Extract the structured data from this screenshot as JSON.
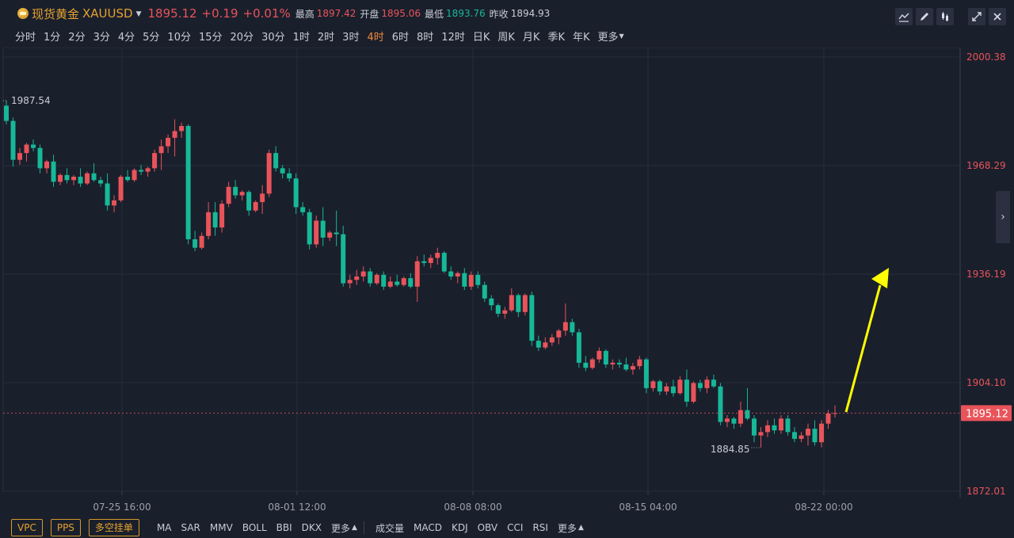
{
  "header": {
    "symbol_name": "现货黄金",
    "symbol_code": "XAUUSD",
    "last_price": "1895.12",
    "change": "+0.19",
    "change_pct": "+0.01%",
    "high_label": "最高",
    "high_value": "1897.42",
    "open_label": "开盘",
    "open_value": "1895.06",
    "low_label": "最低",
    "low_value": "1893.76",
    "prev_close_label": "昨收",
    "prev_close_value": "1894.93",
    "tools": [
      "line-tool-icon",
      "pen-icon",
      "candle-style-icon",
      "expand-icon",
      "close-icon"
    ]
  },
  "timeframes": [
    "分时",
    "1分",
    "2分",
    "3分",
    "4分",
    "5分",
    "10分",
    "15分",
    "20分",
    "30分",
    "1时",
    "2时",
    "3时",
    "4时",
    "6时",
    "8时",
    "12时",
    "日K",
    "周K",
    "月K",
    "季K",
    "年K",
    "更多"
  ],
  "active_timeframe": "4时",
  "footer": {
    "buttons": [
      "VPC",
      "PPS",
      "多空挂单"
    ],
    "main_indicators": [
      "MA",
      "SAR",
      "MMV",
      "BOLL",
      "BBI",
      "DKX"
    ],
    "main_more": "更多",
    "sub_indicators": [
      "成交量",
      "MACD",
      "KDJ",
      "OBV",
      "CCI",
      "RSI"
    ],
    "sub_more": "更多"
  },
  "colors": {
    "up": "#e8545a",
    "down": "#17b897",
    "background": "#1a1f2c",
    "arrow": "#ffff00",
    "accent": "#e4a230"
  },
  "chart_data": {
    "type": "candlestick",
    "ylim": [
      1872.01,
      2000.38
    ],
    "y_ticks": [
      "2000.38",
      "1968.29",
      "1936.19",
      "1904.10",
      "1872.01"
    ],
    "x_ticks": [
      "07-25 16:00",
      "08-01 12:00",
      "08-08 08:00",
      "08-15 04:00",
      "08-22 00:00"
    ],
    "last_price_label": "1895.12",
    "high_marker": "1987.54",
    "low_marker": "1884.85",
    "grid": true,
    "candles": [
      [
        1986.0,
        1987.5,
        1980.5,
        1981.5
      ],
      [
        1981.5,
        1982.5,
        1968.0,
        1970.0
      ],
      [
        1970.0,
        1973.5,
        1968.5,
        1972.0
      ],
      [
        1972.0,
        1975.0,
        1969.5,
        1974.5
      ],
      [
        1974.5,
        1976.0,
        1972.5,
        1973.5
      ],
      [
        1973.5,
        1974.5,
        1966.0,
        1967.5
      ],
      [
        1967.5,
        1970.0,
        1966.0,
        1969.5
      ],
      [
        1969.5,
        1971.5,
        1962.0,
        1963.5
      ],
      [
        1963.5,
        1966.0,
        1962.5,
        1965.5
      ],
      [
        1965.5,
        1967.5,
        1963.0,
        1964.0
      ],
      [
        1964.0,
        1965.5,
        1962.5,
        1965.0
      ],
      [
        1965.0,
        1967.5,
        1962.0,
        1963.0
      ],
      [
        1963.0,
        1966.5,
        1962.5,
        1966.0
      ],
      [
        1966.0,
        1969.0,
        1963.5,
        1964.0
      ],
      [
        1964.0,
        1965.0,
        1962.0,
        1963.0
      ],
      [
        1963.0,
        1966.0,
        1955.0,
        1956.5
      ],
      [
        1956.5,
        1959.5,
        1954.5,
        1958.0
      ],
      [
        1958.0,
        1965.5,
        1957.5,
        1965.0
      ],
      [
        1965.0,
        1967.0,
        1963.5,
        1964.0
      ],
      [
        1964.0,
        1967.5,
        1963.5,
        1967.0
      ],
      [
        1967.0,
        1968.5,
        1965.5,
        1966.5
      ],
      [
        1966.5,
        1968.0,
        1965.0,
        1967.5
      ],
      [
        1967.5,
        1973.0,
        1966.5,
        1972.0
      ],
      [
        1972.0,
        1976.0,
        1967.0,
        1974.0
      ],
      [
        1974.0,
        1977.5,
        1972.0,
        1976.5
      ],
      [
        1976.5,
        1982.0,
        1971.0,
        1978.5
      ],
      [
        1978.5,
        1981.0,
        1976.5,
        1980.0
      ],
      [
        1980.0,
        1980.5,
        1945.0,
        1946.5
      ],
      [
        1946.5,
        1949.0,
        1943.0,
        1944.0
      ],
      [
        1944.0,
        1948.5,
        1943.5,
        1947.5
      ],
      [
        1947.5,
        1957.5,
        1946.5,
        1954.5
      ],
      [
        1954.5,
        1957.5,
        1947.5,
        1950.0
      ],
      [
        1950.0,
        1958.0,
        1948.5,
        1957.0
      ],
      [
        1957.0,
        1963.5,
        1956.0,
        1962.0
      ],
      [
        1962.0,
        1964.0,
        1958.5,
        1959.5
      ],
      [
        1959.5,
        1961.0,
        1958.0,
        1960.5
      ],
      [
        1960.5,
        1961.0,
        1953.5,
        1955.0
      ],
      [
        1955.0,
        1958.0,
        1954.5,
        1957.5
      ],
      [
        1957.5,
        1962.5,
        1954.0,
        1960.0
      ],
      [
        1960.0,
        1973.0,
        1959.0,
        1972.0
      ],
      [
        1972.0,
        1974.0,
        1966.5,
        1967.5
      ],
      [
        1967.5,
        1968.5,
        1964.5,
        1966.0
      ],
      [
        1966.0,
        1967.5,
        1963.5,
        1964.5
      ],
      [
        1964.5,
        1966.0,
        1954.0,
        1956.0
      ],
      [
        1956.0,
        1957.5,
        1953.5,
        1954.5
      ],
      [
        1954.5,
        1955.5,
        1943.5,
        1945.0
      ],
      [
        1945.0,
        1953.5,
        1944.0,
        1952.0
      ],
      [
        1952.0,
        1956.0,
        1944.5,
        1947.0
      ],
      [
        1947.0,
        1949.0,
        1946.0,
        1948.5
      ],
      [
        1948.5,
        1955.0,
        1944.5,
        1948.0
      ],
      [
        1948.0,
        1950.5,
        1932.5,
        1933.5
      ],
      [
        1933.5,
        1936.0,
        1932.0,
        1934.5
      ],
      [
        1934.5,
        1937.5,
        1933.0,
        1935.5
      ],
      [
        1935.5,
        1938.5,
        1934.0,
        1937.0
      ],
      [
        1937.0,
        1938.0,
        1932.5,
        1933.5
      ],
      [
        1933.5,
        1936.5,
        1933.0,
        1936.0
      ],
      [
        1936.0,
        1937.0,
        1931.5,
        1932.5
      ],
      [
        1932.5,
        1935.5,
        1932.0,
        1934.0
      ],
      [
        1934.0,
        1936.0,
        1932.5,
        1933.0
      ],
      [
        1933.0,
        1935.5,
        1932.5,
        1935.0
      ],
      [
        1935.0,
        1936.5,
        1932.0,
        1932.5
      ],
      [
        1932.5,
        1941.5,
        1928.0,
        1940.0
      ],
      [
        1940.0,
        1942.0,
        1938.5,
        1939.5
      ],
      [
        1939.5,
        1942.0,
        1938.0,
        1941.0
      ],
      [
        1941.0,
        1944.0,
        1939.0,
        1942.5
      ],
      [
        1942.5,
        1943.0,
        1936.5,
        1937.0
      ],
      [
        1937.0,
        1938.5,
        1934.5,
        1935.5
      ],
      [
        1935.5,
        1937.0,
        1933.5,
        1936.5
      ],
      [
        1936.5,
        1938.0,
        1931.5,
        1932.5
      ],
      [
        1932.5,
        1937.0,
        1931.5,
        1936.0
      ],
      [
        1936.0,
        1937.0,
        1932.0,
        1933.0
      ],
      [
        1933.0,
        1934.0,
        1928.0,
        1929.0
      ],
      [
        1929.0,
        1930.0,
        1925.5,
        1927.0
      ],
      [
        1927.0,
        1927.5,
        1923.5,
        1924.5
      ],
      [
        1924.5,
        1926.5,
        1923.0,
        1925.5
      ],
      [
        1925.5,
        1932.0,
        1925.0,
        1930.0
      ],
      [
        1930.0,
        1930.5,
        1923.5,
        1925.0
      ],
      [
        1925.0,
        1930.5,
        1924.0,
        1930.0
      ],
      [
        1930.0,
        1931.0,
        1915.0,
        1916.5
      ],
      [
        1916.5,
        1918.0,
        1913.5,
        1914.5
      ],
      [
        1914.5,
        1917.5,
        1914.0,
        1916.0
      ],
      [
        1916.0,
        1918.5,
        1915.0,
        1917.5
      ],
      [
        1917.5,
        1920.0,
        1915.5,
        1919.5
      ],
      [
        1919.5,
        1927.5,
        1918.0,
        1922.0
      ],
      [
        1922.0,
        1923.0,
        1918.0,
        1919.0
      ],
      [
        1919.0,
        1920.0,
        1908.5,
        1910.0
      ],
      [
        1910.0,
        1912.0,
        1907.5,
        1908.5
      ],
      [
        1908.5,
        1911.5,
        1908.0,
        1911.0
      ],
      [
        1911.0,
        1914.5,
        1910.0,
        1913.5
      ],
      [
        1913.5,
        1914.0,
        1908.5,
        1909.5
      ],
      [
        1909.5,
        1911.0,
        1908.0,
        1910.0
      ],
      [
        1910.0,
        1911.0,
        1908.5,
        1909.5
      ],
      [
        1909.5,
        1911.5,
        1907.5,
        1908.0
      ],
      [
        1908.0,
        1910.0,
        1906.5,
        1909.0
      ],
      [
        1909.0,
        1912.0,
        1908.0,
        1911.0
      ],
      [
        1911.0,
        1911.5,
        1901.0,
        1902.5
      ],
      [
        1902.5,
        1905.0,
        1901.5,
        1904.5
      ],
      [
        1904.5,
        1905.0,
        1900.5,
        1901.5
      ],
      [
        1901.5,
        1904.0,
        1900.5,
        1903.0
      ],
      [
        1903.0,
        1905.0,
        1900.0,
        1901.0
      ],
      [
        1901.0,
        1906.0,
        1900.5,
        1905.0
      ],
      [
        1905.0,
        1908.0,
        1897.0,
        1898.5
      ],
      [
        1898.5,
        1904.5,
        1898.0,
        1904.0
      ],
      [
        1904.0,
        1905.0,
        1901.5,
        1902.5
      ],
      [
        1902.5,
        1906.0,
        1901.0,
        1905.0
      ],
      [
        1905.0,
        1906.5,
        1902.5,
        1903.0
      ],
      [
        1903.0,
        1904.0,
        1891.5,
        1892.5
      ],
      [
        1892.5,
        1894.5,
        1891.0,
        1893.5
      ],
      [
        1893.5,
        1894.0,
        1890.5,
        1892.0
      ],
      [
        1892.0,
        1898.5,
        1891.0,
        1896.0
      ],
      [
        1896.0,
        1902.5,
        1893.0,
        1893.5
      ],
      [
        1893.5,
        1894.5,
        1886.5,
        1888.5
      ],
      [
        1888.5,
        1891.0,
        1884.9,
        1889.5
      ],
      [
        1889.5,
        1893.0,
        1888.0,
        1891.5
      ],
      [
        1891.5,
        1893.5,
        1889.0,
        1890.0
      ],
      [
        1890.0,
        1894.5,
        1889.0,
        1893.5
      ],
      [
        1893.5,
        1894.5,
        1888.5,
        1889.5
      ],
      [
        1889.5,
        1891.0,
        1886.5,
        1887.5
      ],
      [
        1887.5,
        1889.5,
        1886.5,
        1888.5
      ],
      [
        1888.5,
        1892.0,
        1885.5,
        1890.5
      ],
      [
        1890.5,
        1893.0,
        1885.5,
        1886.5
      ],
      [
        1886.5,
        1893.0,
        1885.0,
        1892.0
      ],
      [
        1892.0,
        1896.0,
        1890.5,
        1895.0
      ],
      [
        1895.0,
        1897.4,
        1893.8,
        1895.1
      ]
    ]
  }
}
